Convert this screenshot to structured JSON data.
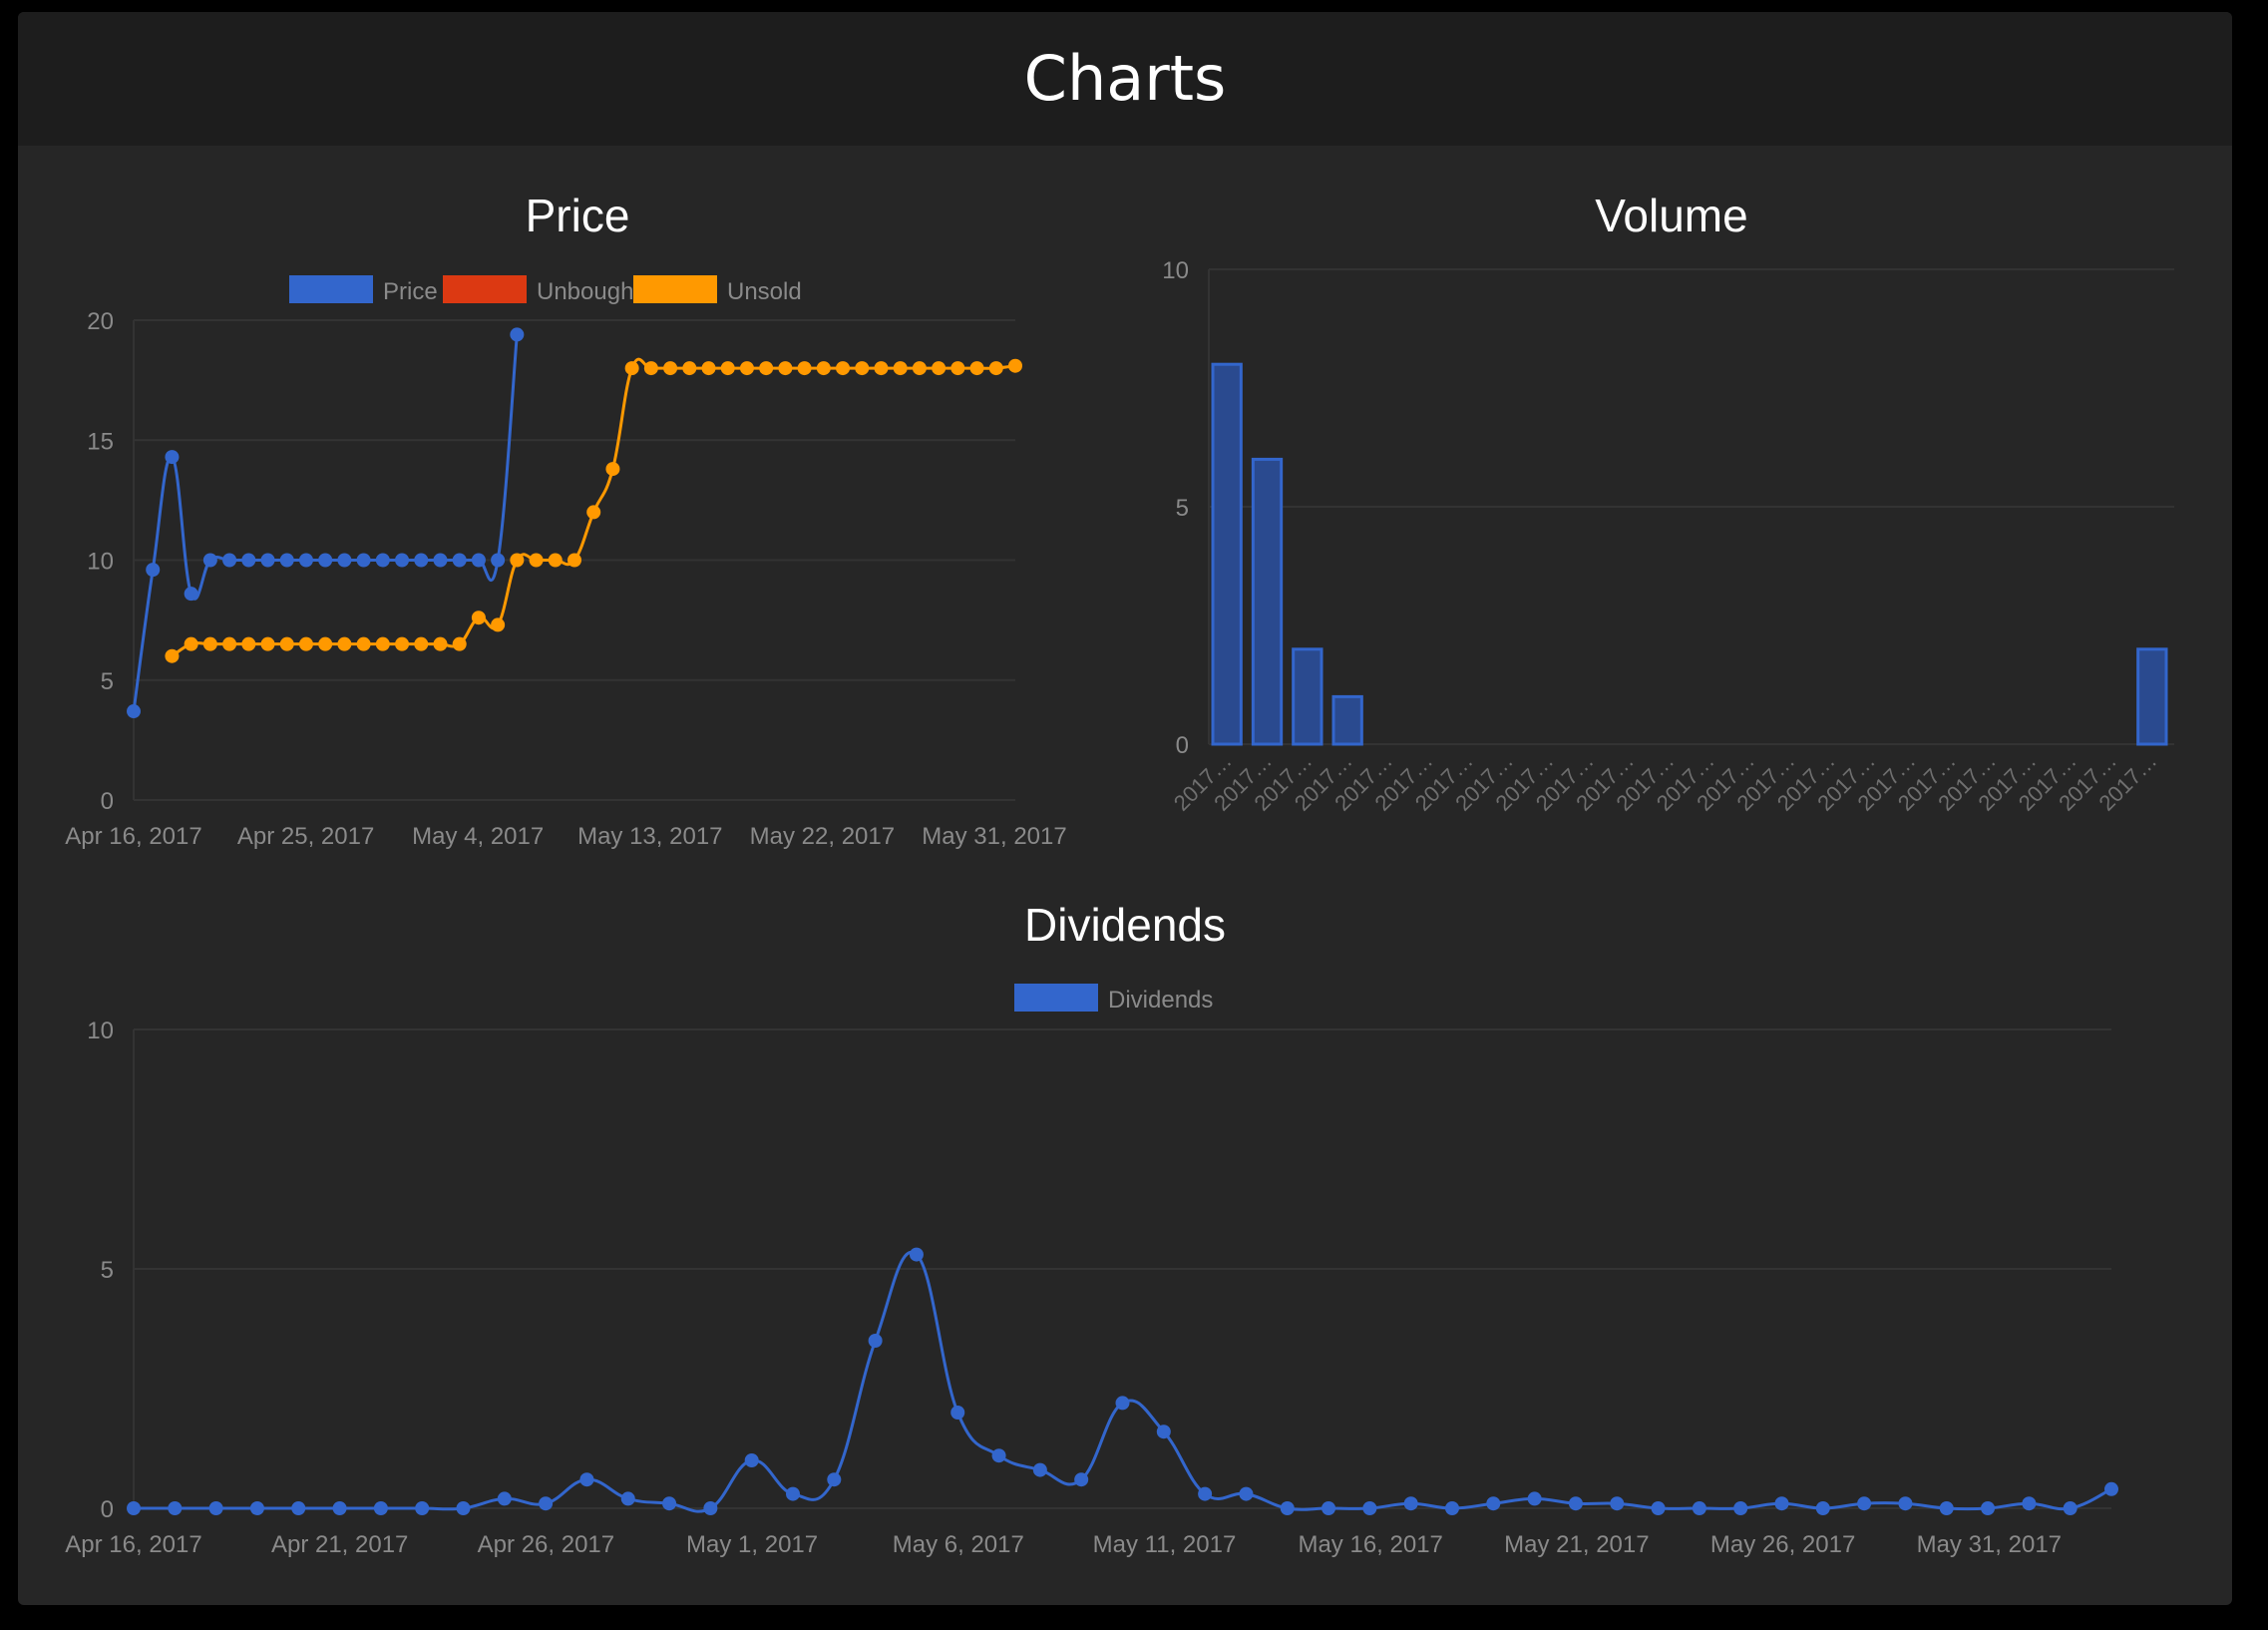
{
  "page": {
    "title": "Charts"
  },
  "colors": {
    "panel_bg": "#262626",
    "header_bg": "#1d1d1d",
    "grid": "#333333",
    "tick_text": "#8a8a8a",
    "title_text": "#ffffff",
    "price": "#3366cc",
    "unbought": "#dc3912",
    "unsold": "#ff9900"
  },
  "chart_data": [
    {
      "id": "price",
      "type": "line",
      "title": "Price",
      "legend": "top-center",
      "grid": true,
      "xlabel": "",
      "ylabel": "",
      "ylim": [
        0,
        20
      ],
      "yticks": [
        0,
        5,
        10,
        15,
        20
      ],
      "xlim": [
        "2017-04-16",
        "2017-06-01"
      ],
      "xticks": [
        "Apr 16, 2017",
        "Apr 25, 2017",
        "May 4, 2017",
        "May 13, 2017",
        "May 22, 2017",
        "May 31, 2017"
      ],
      "series": [
        {
          "name": "Price",
          "color": "#3366cc",
          "points": [
            [
              "2017-04-16",
              3.7
            ],
            [
              "2017-04-17",
              9.6
            ],
            [
              "2017-04-18",
              14.3
            ],
            [
              "2017-04-19",
              8.6
            ],
            [
              "2017-04-20",
              10
            ],
            [
              "2017-04-21",
              10
            ],
            [
              "2017-04-22",
              10
            ],
            [
              "2017-04-23",
              10
            ],
            [
              "2017-04-24",
              10
            ],
            [
              "2017-04-25",
              10
            ],
            [
              "2017-04-26",
              10
            ],
            [
              "2017-04-27",
              10
            ],
            [
              "2017-04-28",
              10
            ],
            [
              "2017-04-29",
              10
            ],
            [
              "2017-04-30",
              10
            ],
            [
              "2017-05-01",
              10
            ],
            [
              "2017-05-02",
              10
            ],
            [
              "2017-05-03",
              10
            ],
            [
              "2017-05-04",
              10
            ],
            [
              "2017-05-05",
              10
            ],
            [
              "2017-05-06",
              19.4
            ]
          ]
        },
        {
          "name": "Unbought",
          "color": "#dc3912",
          "points": []
        },
        {
          "name": "Unsold",
          "color": "#ff9900",
          "points": [
            [
              "2017-04-18",
              6
            ],
            [
              "2017-04-19",
              6.5
            ],
            [
              "2017-04-20",
              6.5
            ],
            [
              "2017-04-21",
              6.5
            ],
            [
              "2017-04-22",
              6.5
            ],
            [
              "2017-04-23",
              6.5
            ],
            [
              "2017-04-24",
              6.5
            ],
            [
              "2017-04-25",
              6.5
            ],
            [
              "2017-04-26",
              6.5
            ],
            [
              "2017-04-27",
              6.5
            ],
            [
              "2017-04-28",
              6.5
            ],
            [
              "2017-04-29",
              6.5
            ],
            [
              "2017-04-30",
              6.5
            ],
            [
              "2017-05-01",
              6.5
            ],
            [
              "2017-05-02",
              6.5
            ],
            [
              "2017-05-03",
              6.5
            ],
            [
              "2017-05-04",
              7.6
            ],
            [
              "2017-05-05",
              7.3
            ],
            [
              "2017-05-06",
              10
            ],
            [
              "2017-05-07",
              10
            ],
            [
              "2017-05-08",
              10
            ],
            [
              "2017-05-09",
              10
            ],
            [
              "2017-05-10",
              12
            ],
            [
              "2017-05-11",
              13.8
            ],
            [
              "2017-05-12",
              18
            ],
            [
              "2017-05-13",
              18
            ],
            [
              "2017-05-14",
              18
            ],
            [
              "2017-05-15",
              18
            ],
            [
              "2017-05-16",
              18
            ],
            [
              "2017-05-17",
              18
            ],
            [
              "2017-05-18",
              18
            ],
            [
              "2017-05-19",
              18
            ],
            [
              "2017-05-20",
              18
            ],
            [
              "2017-05-21",
              18
            ],
            [
              "2017-05-22",
              18
            ],
            [
              "2017-05-23",
              18
            ],
            [
              "2017-05-24",
              18
            ],
            [
              "2017-05-25",
              18
            ],
            [
              "2017-05-26",
              18
            ],
            [
              "2017-05-27",
              18
            ],
            [
              "2017-05-28",
              18
            ],
            [
              "2017-05-29",
              18
            ],
            [
              "2017-05-30",
              18
            ],
            [
              "2017-05-31",
              18
            ],
            [
              "2017-06-01",
              18.1
            ]
          ]
        }
      ]
    },
    {
      "id": "volume",
      "type": "bar",
      "title": "Volume",
      "legend": "none",
      "grid": true,
      "xlabel": "",
      "ylabel": "",
      "ylim": [
        0,
        10
      ],
      "yticks": [
        0,
        5,
        10
      ],
      "category_label": "2017…",
      "categories": 24,
      "values": [
        8,
        6,
        2,
        1,
        0,
        0,
        0,
        0,
        0,
        0,
        0,
        0,
        0,
        0,
        0,
        0,
        0,
        0,
        0,
        0,
        0,
        0,
        0,
        2
      ],
      "color": "#3366cc"
    },
    {
      "id": "dividends",
      "type": "line",
      "title": "Dividends",
      "legend": "top-center",
      "grid": true,
      "xlabel": "",
      "ylabel": "",
      "ylim": [
        0,
        10
      ],
      "yticks": [
        0,
        5,
        10
      ],
      "xlim": [
        "2017-04-16",
        "2017-06-03"
      ],
      "xticks": [
        "Apr 16, 2017",
        "Apr 21, 2017",
        "Apr 26, 2017",
        "May 1, 2017",
        "May 6, 2017",
        "May 11, 2017",
        "May 16, 2017",
        "May 21, 2017",
        "May 26, 2017",
        "May 31, 2017"
      ],
      "series": [
        {
          "name": "Dividends",
          "color": "#3366cc",
          "points": [
            [
              "2017-04-16",
              0
            ],
            [
              "2017-04-17",
              0
            ],
            [
              "2017-04-18",
              0
            ],
            [
              "2017-04-19",
              0
            ],
            [
              "2017-04-20",
              0
            ],
            [
              "2017-04-21",
              0
            ],
            [
              "2017-04-22",
              0
            ],
            [
              "2017-04-23",
              0
            ],
            [
              "2017-04-24",
              0
            ],
            [
              "2017-04-25",
              0.2
            ],
            [
              "2017-04-26",
              0.1
            ],
            [
              "2017-04-27",
              0.6
            ],
            [
              "2017-04-28",
              0.2
            ],
            [
              "2017-04-29",
              0.1
            ],
            [
              "2017-04-30",
              0
            ],
            [
              "2017-05-01",
              1
            ],
            [
              "2017-05-02",
              0.3
            ],
            [
              "2017-05-03",
              0.6
            ],
            [
              "2017-05-04",
              3.5
            ],
            [
              "2017-05-05",
              5.3
            ],
            [
              "2017-05-06",
              2
            ],
            [
              "2017-05-07",
              1.1
            ],
            [
              "2017-05-08",
              0.8
            ],
            [
              "2017-05-09",
              0.6
            ],
            [
              "2017-05-10",
              2.2
            ],
            [
              "2017-05-11",
              1.6
            ],
            [
              "2017-05-12",
              0.3
            ],
            [
              "2017-05-13",
              0.3
            ],
            [
              "2017-05-14",
              0
            ],
            [
              "2017-05-15",
              0
            ],
            [
              "2017-05-16",
              0
            ],
            [
              "2017-05-17",
              0.1
            ],
            [
              "2017-05-18",
              0
            ],
            [
              "2017-05-19",
              0.1
            ],
            [
              "2017-05-20",
              0.2
            ],
            [
              "2017-05-21",
              0.1
            ],
            [
              "2017-05-22",
              0.1
            ],
            [
              "2017-05-23",
              0
            ],
            [
              "2017-05-24",
              0
            ],
            [
              "2017-05-25",
              0
            ],
            [
              "2017-05-26",
              0.1
            ],
            [
              "2017-05-27",
              0
            ],
            [
              "2017-05-28",
              0.1
            ],
            [
              "2017-05-29",
              0.1
            ],
            [
              "2017-05-30",
              0
            ],
            [
              "2017-05-31",
              0
            ],
            [
              "2017-06-01",
              0.1
            ],
            [
              "2017-06-02",
              0
            ],
            [
              "2017-06-03",
              0.4
            ]
          ]
        }
      ]
    }
  ]
}
